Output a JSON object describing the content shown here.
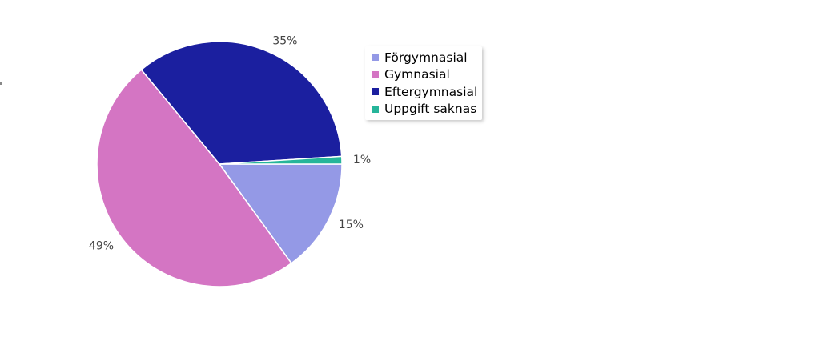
{
  "chart_data": {
    "type": "pie",
    "title": "",
    "categories": [
      "Förgymnasial",
      "Gymnasial",
      "Eftergymnasial",
      "Uppgift saknas"
    ],
    "values": [
      15,
      49,
      35,
      1
    ],
    "data_labels": [
      "15%",
      "49%",
      "35%",
      "1%"
    ],
    "colors": [
      "#9499e6",
      "#d475c3",
      "#1b1f9f",
      "#26b59a"
    ],
    "legend": {
      "placement": "right",
      "entries": [
        "Förgymnasial",
        "Gymnasial",
        "Eftergymnasial",
        "Uppgift saknas"
      ]
    }
  }
}
